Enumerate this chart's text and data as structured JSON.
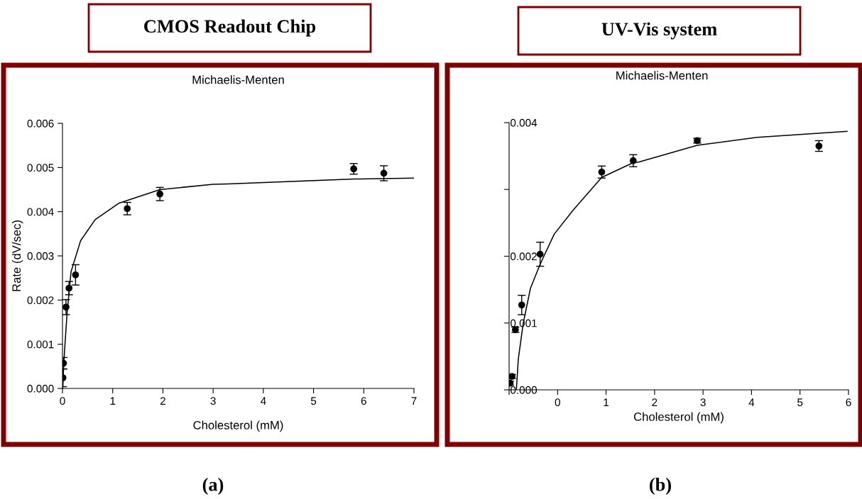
{
  "chart_data": [
    {
      "type": "scatter",
      "title": "CMOS Readout Chip",
      "subtitle": "Michaelis-Menten",
      "xlabel": "Cholesterol (mM)",
      "ylabel": "Rate (dV/sec)",
      "annotations": [
        "(a)"
      ],
      "xlim": [
        0,
        7
      ],
      "xticks": [
        0,
        1,
        2,
        3,
        4,
        5,
        6,
        7
      ],
      "ylim": [
        0,
        0.006
      ],
      "yticks": [
        {
          "value": 0,
          "label": "0.000"
        },
        {
          "value": 0.001,
          "label": "0.001"
        },
        {
          "value": 0.002,
          "label": "0.002"
        },
        {
          "value": 0.003,
          "label": "0.003"
        },
        {
          "value": 0.004,
          "label": "0.004"
        },
        {
          "value": 0.005,
          "label": "0.005"
        },
        {
          "value": 0.006,
          "label": "0.006"
        }
      ],
      "grid": false,
      "legend": false,
      "series": [
        {
          "type": "scatter",
          "color": "#000000",
          "marker": "circle",
          "x": [
            0.01,
            0.02,
            0.07,
            0.13,
            0.26,
            1.29,
            1.94,
            5.8,
            6.4
          ],
          "values": [
            0.00024,
            0.00057,
            0.00184,
            0.00227,
            0.00257,
            0.00407,
            0.0044,
            0.00497,
            0.00487
          ],
          "errors": [
            0.0002,
            0.00013,
            0.00017,
            0.00015,
            0.00023,
            0.00014,
            0.00015,
            0.00012,
            0.00017
          ]
        },
        {
          "type": "line",
          "color": "#000000",
          "line_style": "solid",
          "x": [
            0,
            0.04,
            0.09,
            0.17,
            0.36,
            0.65,
            1.12,
            1.94,
            3.0,
            3.29,
            5.83,
            7
          ],
          "values": [
            0,
            0.00083,
            0.00168,
            0.00264,
            0.00334,
            0.00382,
            0.00419,
            0.0045,
            0.00462,
            0.00463,
            0.00474,
            0.00476
          ]
        }
      ]
    },
    {
      "type": "scatter",
      "title": "UV-Vis system",
      "subtitle": "Michaelis-Menten",
      "xlabel": "Cholesterol (mM)",
      "annotations": [
        "(b)"
      ],
      "xlim": [
        -1,
        6
      ],
      "xticks": [
        {
          "value": -1,
          "label": null
        },
        0,
        1,
        2,
        3,
        4,
        5,
        6
      ],
      "ylim": [
        0,
        0.004
      ],
      "yticks": [
        {
          "value": 0,
          "label": "0.000"
        },
        {
          "value": 0.001,
          "label": "0.001"
        },
        {
          "value": 0.002,
          "label": "0.002"
        },
        {
          "value": 0.003,
          "label": null
        },
        {
          "value": 0.004,
          "label": "0.004"
        }
      ],
      "grid": false,
      "legend": false,
      "series": [
        {
          "type": "scatter",
          "color": "#000000",
          "marker": "circle",
          "x": [
            -0.98,
            -0.94,
            -0.87,
            -0.74,
            -0.36,
            0.91,
            1.56,
            2.88,
            5.39
          ],
          "values": [
            0.0001,
            0.0002,
            0.0009,
            0.00127,
            0.00203,
            0.00326,
            0.00343,
            0.00373,
            0.00365
          ],
          "errors": [
            3e-05,
            3e-05,
            4e-05,
            0.000145,
            0.00018,
            9e-05,
            9e-05,
            3.5e-05,
            8e-05
          ]
        },
        {
          "type": "line",
          "color": "#000000",
          "line_style": "solid",
          "x": [
            -0.85,
            -0.81,
            -0.71,
            -0.56,
            -0.36,
            -0.07,
            0.32,
            0.91,
            1.56,
            1.68,
            2.88,
            4.12,
            5.97
          ],
          "values": [
            0,
            0.00046,
            0.00099,
            0.00152,
            0.00188,
            0.00233,
            0.00269,
            0.00318,
            0.0034,
            0.00341,
            0.00366,
            0.00378,
            0.00387
          ]
        }
      ]
    }
  ]
}
